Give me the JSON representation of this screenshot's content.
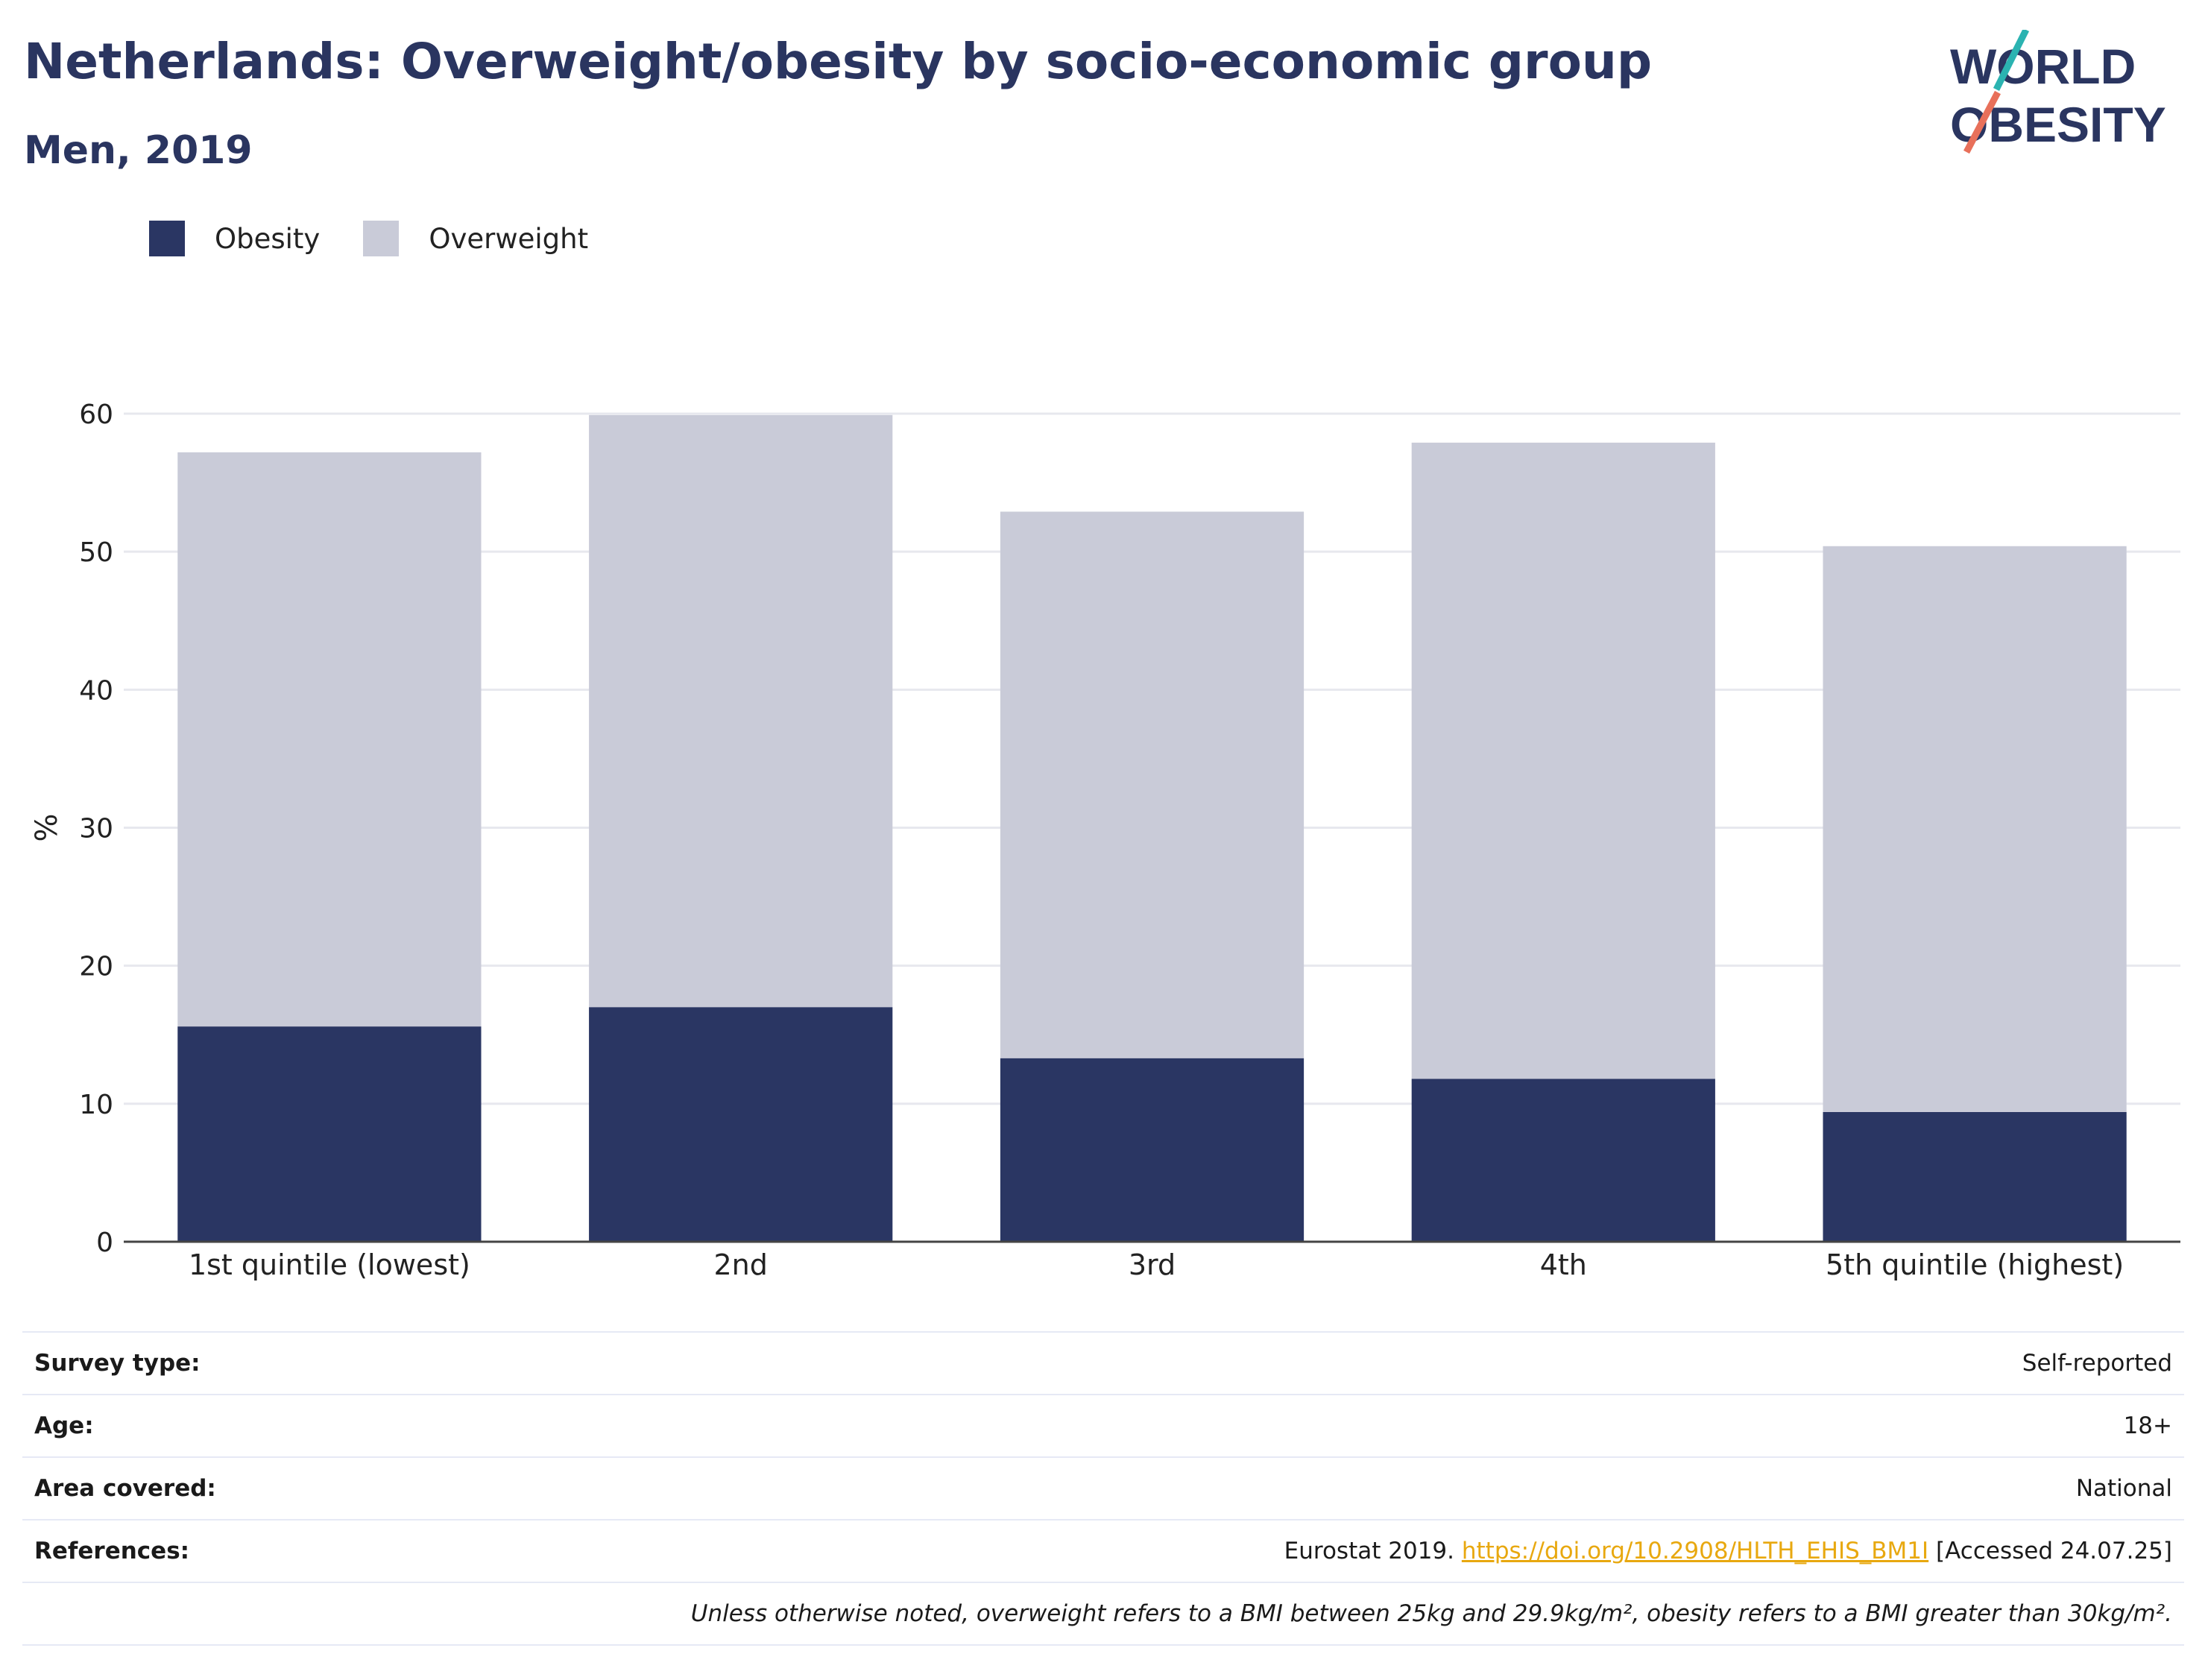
{
  "header": {
    "title": "Netherlands: Overweight/obesity by socio-economic group",
    "subtitle": "Men, 2019"
  },
  "logo": {
    "line1": "WORLD",
    "line2": "OBESITY",
    "accent_top": "#2bb3b1",
    "accent_bottom": "#e8705a",
    "text_color": "#2a3560"
  },
  "legend": {
    "items": [
      {
        "label": "Obesity",
        "color": "#2a3663"
      },
      {
        "label": "Overweight",
        "color": "#c9cbd8"
      }
    ]
  },
  "chart_data": {
    "type": "bar",
    "stacked": true,
    "categories": [
      "1st quintile (lowest)",
      "2nd",
      "3rd",
      "4th",
      "5th quintile (highest)"
    ],
    "series": [
      {
        "name": "Obesity",
        "color": "#2a3663",
        "values": [
          15.6,
          17.0,
          13.3,
          11.8,
          9.4
        ]
      },
      {
        "name": "Overweight",
        "color": "#c9cbd8",
        "values": [
          41.6,
          42.9,
          39.6,
          46.1,
          41.0
        ]
      }
    ],
    "ylabel": "%",
    "ylim": [
      0,
      60
    ],
    "yticks": [
      "0",
      "10",
      "20",
      "30",
      "40",
      "50",
      "60"
    ],
    "grid": true,
    "legend_position": "top-left"
  },
  "meta": {
    "survey_type": {
      "label": "Survey type:",
      "value": "Self-reported"
    },
    "age": {
      "label": "Age:",
      "value": "18+"
    },
    "area": {
      "label": "Area covered:",
      "value": "National"
    },
    "references": {
      "label": "References:",
      "prefix": "Eurostat 2019.",
      "link": "https://doi.org/10.2908/HLTH_EHIS_BM1I",
      "suffix": "[Accessed 24.07.25]"
    },
    "note": "Unless otherwise noted, overweight refers to a BMI between 25kg and 29.9kg/m², obesity refers to a BMI greater than 30kg/m²."
  }
}
